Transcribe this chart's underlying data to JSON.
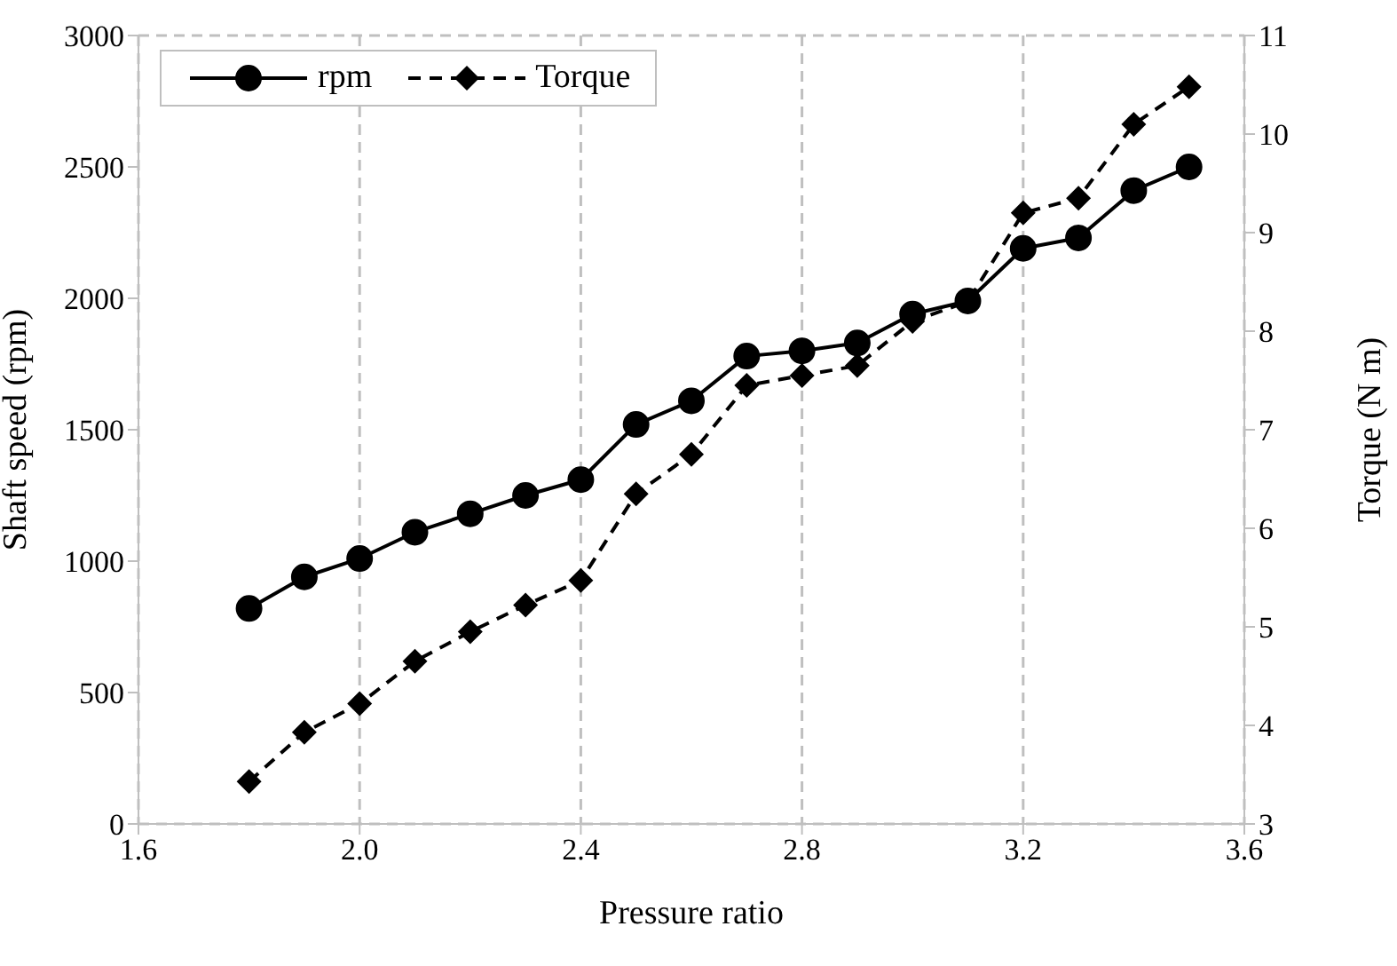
{
  "chart_data": {
    "type": "line",
    "xlabel": "Pressure ratio",
    "ylabel": "Shaft speed (rpm)",
    "y2label": "Torque (N m)",
    "x": [
      1.8,
      1.9,
      2.0,
      2.1,
      2.2,
      2.3,
      2.4,
      2.5,
      2.6,
      2.7,
      2.8,
      2.9,
      3.0,
      3.1,
      3.2,
      3.3,
      3.4,
      3.5
    ],
    "series": [
      {
        "name": "rpm",
        "color": "#000000",
        "marker": "circle",
        "line_style": "solid",
        "values": [
          820,
          940,
          1010,
          1110,
          1180,
          1250,
          1310,
          1520,
          1610,
          1780,
          1800,
          1830,
          1940,
          1990,
          2190,
          2230,
          2410,
          2500
        ]
      },
      {
        "name": "Torque",
        "color": "#000000",
        "marker": "diamond",
        "line_style": "dashed",
        "axis": "y2",
        "values": [
          3.43,
          3.93,
          4.22,
          4.65,
          4.95,
          5.22,
          5.47,
          6.35,
          6.75,
          7.45,
          7.55,
          7.65,
          8.1,
          8.3,
          9.2,
          9.35,
          10.1,
          10.48
        ]
      }
    ],
    "xlim": [
      1.6,
      3.6
    ],
    "xticks": [
      1.6,
      {
        "value": 2.0,
        "label": "2.0"
      },
      2.4,
      2.8,
      3.2,
      3.6
    ],
    "ylim": [
      0,
      3000
    ],
    "yticks": [
      0,
      500,
      1000,
      1500,
      2000,
      2500,
      3000
    ],
    "y2lim": [
      3,
      11
    ],
    "y2ticks": [
      3,
      4,
      5,
      6,
      7,
      8,
      9,
      10,
      11
    ],
    "grid": true,
    "legend": "top left"
  }
}
